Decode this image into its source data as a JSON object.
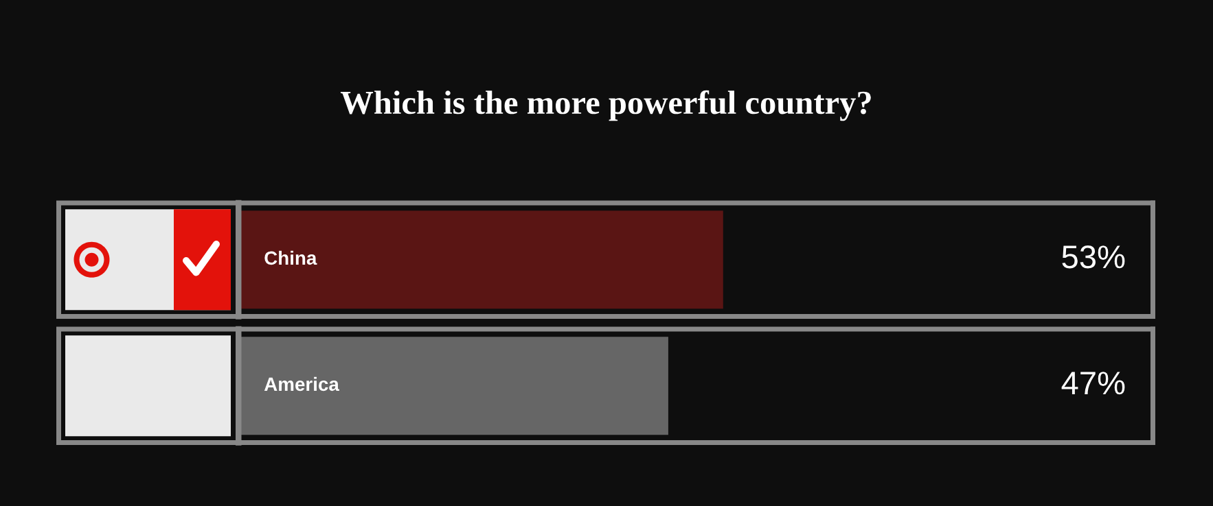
{
  "chart_data": {
    "type": "bar",
    "orientation": "horizontal",
    "title": "Which is the more powerful country?",
    "categories": [
      "China",
      "America"
    ],
    "values": [
      53,
      47
    ],
    "colors": [
      "#5a1514",
      "#666666"
    ],
    "value_labels": [
      "53%",
      "47%"
    ],
    "xlim": [
      0,
      100
    ],
    "tick_labels": false,
    "ref_lines": [
      {
        "axis": "x",
        "value": 100,
        "color": "#888888"
      }
    ]
  }
}
